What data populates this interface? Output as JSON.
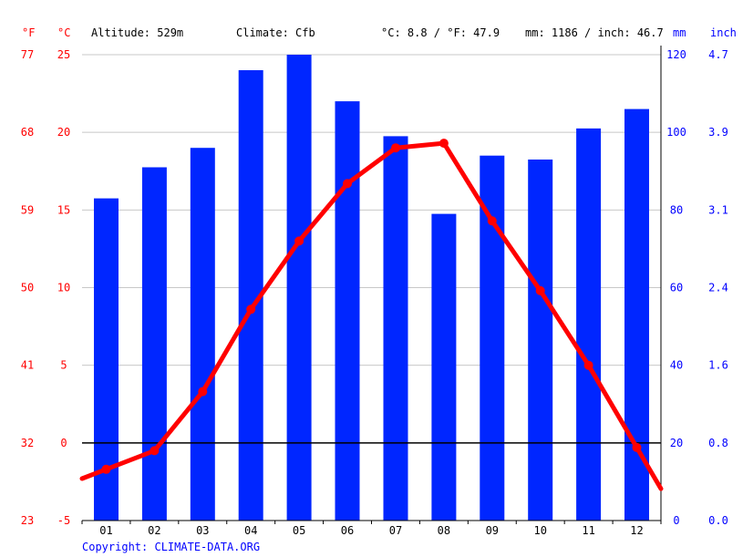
{
  "header": {
    "unit_f": "°F",
    "unit_c": "°C",
    "altitude": "Altitude: 529m",
    "climate": "Climate: Cfb",
    "temp_avg": "°C: 8.8 / °F: 47.9",
    "precip_total": "mm: 1186 / inch: 46.7",
    "unit_mm": "mm",
    "unit_inch": "inch"
  },
  "copyright": "Copyright: CLIMATE-DATA.ORG",
  "colors": {
    "temperature": "#ff0000",
    "precipitation": "#0026ff",
    "grid": "#c8c8c8",
    "zero_line": "#000000",
    "secondary_axis_text": "#0000ff"
  },
  "chart_data": {
    "type": "bar",
    "categories": [
      "01",
      "02",
      "03",
      "04",
      "05",
      "06",
      "07",
      "08",
      "09",
      "10",
      "11",
      "12"
    ],
    "series": [
      {
        "type": "bar",
        "axis": "precipitation_mm",
        "values": [
          83,
          91,
          96,
          116,
          120,
          108,
          99,
          79,
          94,
          93,
          101,
          106
        ]
      },
      {
        "type": "line",
        "axis": "temperature_c",
        "values": [
          -1.7,
          -0.5,
          3.3,
          8.6,
          13.0,
          16.7,
          19.0,
          19.3,
          14.3,
          9.8,
          5.0,
          -0.3
        ]
      }
    ],
    "y_left_c": {
      "ticks": [
        "-5",
        "0",
        "5",
        "10",
        "15",
        "20",
        "25"
      ],
      "range": [
        -5,
        25
      ]
    },
    "y_left_f": {
      "ticks": [
        "23",
        "32",
        "41",
        "50",
        "59",
        "68",
        "77"
      ]
    },
    "y_right_mm": {
      "ticks": [
        "0",
        "20",
        "40",
        "60",
        "80",
        "100",
        "120"
      ],
      "range": [
        0,
        120
      ]
    },
    "y_right_inch": {
      "ticks": [
        "0.0",
        "0.8",
        "1.6",
        "2.4",
        "3.1",
        "3.9",
        "4.7"
      ]
    },
    "grid": true
  }
}
